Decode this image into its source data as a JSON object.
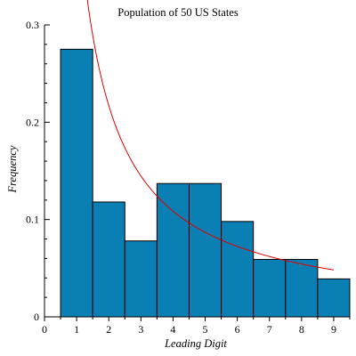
{
  "chart_data": {
    "type": "bar",
    "title": "Population of 50 US States",
    "xlabel": "Leading Digit",
    "ylabel": "Frequency",
    "xlim": [
      0,
      9.5
    ],
    "ylim": [
      0,
      0.3
    ],
    "grid": false,
    "x_ticks": [
      0,
      1,
      2,
      3,
      4,
      5,
      6,
      7,
      8,
      9
    ],
    "y_ticks": [
      0,
      0.1,
      0.2,
      0.3
    ],
    "bins": [
      {
        "from": 0.5,
        "to": 1.5,
        "value": 0.275
      },
      {
        "from": 1.5,
        "to": 2.5,
        "value": 0.118
      },
      {
        "from": 2.5,
        "to": 3.5,
        "value": 0.078
      },
      {
        "from": 3.5,
        "to": 4.5,
        "value": 0.137
      },
      {
        "from": 4.5,
        "to": 5.5,
        "value": 0.137
      },
      {
        "from": 5.5,
        "to": 6.5,
        "value": 0.098
      },
      {
        "from": 6.5,
        "to": 7.5,
        "value": 0.059
      },
      {
        "from": 7.5,
        "to": 8.5,
        "value": 0.059
      },
      {
        "from": 8.5,
        "to": 9.5,
        "value": 0.039
      }
    ],
    "curve": {
      "function": "1/(x*ln(10))",
      "x_range": [
        1,
        9
      ],
      "color": "#e00000"
    },
    "bar_color": "#0a7fb3"
  }
}
